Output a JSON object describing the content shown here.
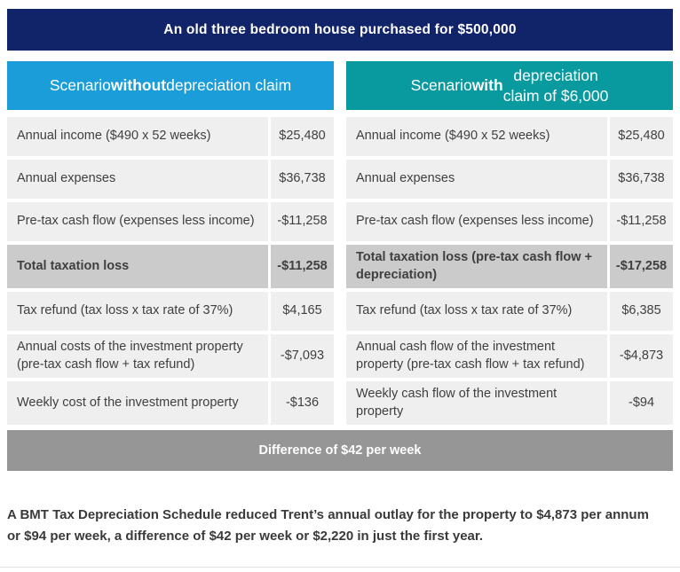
{
  "banner": {
    "title": "An old three bedroom house purchased for $500,000"
  },
  "colors": {
    "banner_bg": "#112369",
    "left_header_bg": "#1b9dd9",
    "right_header_bg": "#089a9e",
    "row_bg": "#efefef",
    "total_row_bg": "#cbcbcb",
    "footer_bg": "#969696"
  },
  "tables": {
    "left": {
      "header": {
        "pre": "Scenario ",
        "bold": "without",
        "post": " depreciation claim"
      },
      "rows": [
        {
          "label": "Annual income ($490 x 52 weeks)",
          "value": "$25,480",
          "bold": false
        },
        {
          "label": "Annual expenses",
          "value": "$36,738",
          "bold": false
        },
        {
          "label": "Pre-tax cash flow (expenses less income)",
          "value": "-$11,258",
          "bold": false
        },
        {
          "label": "Total taxation loss",
          "value": "-$11,258",
          "bold": true
        },
        {
          "label": "Tax refund (tax loss x tax rate of 37%)",
          "value": "$4,165",
          "bold": false
        },
        {
          "label": "Annual costs of the investment property (pre-tax cash flow + tax refund)",
          "value": "-$7,093",
          "bold": false
        },
        {
          "label": "Weekly cost of the investment property",
          "value": "-$136",
          "bold": false
        }
      ]
    },
    "right": {
      "header": {
        "pre": "Scenario ",
        "bold": "with",
        "post": " depreciation\nclaim of $6,000"
      },
      "rows": [
        {
          "label": "Annual income ($490 x 52 weeks)",
          "value": "$25,480",
          "bold": false
        },
        {
          "label": "Annual expenses",
          "value": "$36,738",
          "bold": false
        },
        {
          "label": "Pre-tax cash flow (expenses less income)",
          "value": "-$11,258",
          "bold": false
        },
        {
          "label": "Total taxation loss (pre-tax cash flow + depreciation)",
          "value": "-$17,258",
          "bold": true
        },
        {
          "label": "Tax refund (tax loss x tax rate of 37%)",
          "value": "$6,385",
          "bold": false
        },
        {
          "label": "Annual cash flow of the investment property (pre-tax cash flow + tax refund)",
          "value": "-$4,873",
          "bold": false
        },
        {
          "label": "Weekly cash flow of the investment property",
          "value": "-$94",
          "bold": false
        }
      ]
    }
  },
  "footer": {
    "text": "Difference of $42 per week"
  },
  "summary": {
    "text": "A BMT Tax Depreciation Schedule reduced Trent’s annual outlay for the property to $4,873 per annum or $94 per week, a difference of $42 per week or $2,220 in just the first year."
  }
}
